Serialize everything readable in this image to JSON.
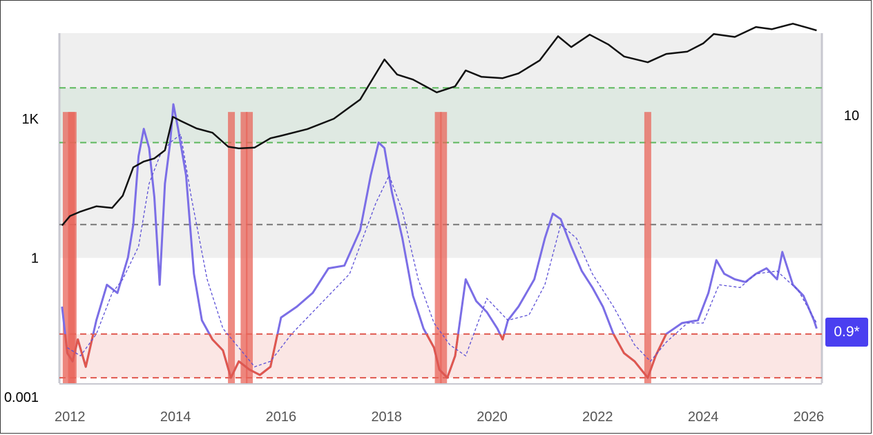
{
  "chart_data": {
    "type": "line",
    "x_ticks": [
      "2012",
      "2014",
      "2016",
      "2018",
      "2020",
      "2022",
      "2024",
      "2026"
    ],
    "y_left_ticks": [
      "1K",
      "1",
      "0.001"
    ],
    "y_right_ticks": [
      "10"
    ],
    "value_badge": "0.9*",
    "colors": {
      "price": "#111111",
      "oscillator": "#7b6ee6",
      "oscillator_low": "#e0574d",
      "signal": "#5b4fd6",
      "upper_band": "#dfe9e2",
      "lower_band": "#fbe6e4",
      "badge": "#4a3ff0"
    },
    "series": [
      {
        "role": "price",
        "x": [
          2011.85,
          2012.0,
          2012.2,
          2012.5,
          2012.8,
          2013.0,
          2013.2,
          2013.4,
          2013.6,
          2013.8,
          2013.95,
          2014.1,
          2014.4,
          2014.7,
          2015.0,
          2015.2,
          2015.5,
          2015.8,
          2016.0,
          2016.5,
          2017.0,
          2017.5,
          2017.96,
          2018.2,
          2018.5,
          2018.95,
          2019.3,
          2019.5,
          2019.8,
          2020.2,
          2020.5,
          2020.9,
          2021.25,
          2021.5,
          2021.85,
          2022.2,
          2022.5,
          2022.95,
          2023.3,
          2023.7,
          2024.0,
          2024.2,
          2024.6,
          2025.0,
          2025.3,
          2025.7,
          2026.0,
          2026.15
        ],
        "y": [
          5,
          8,
          10,
          13,
          12,
          22,
          90,
          120,
          140,
          210,
          1100,
          900,
          620,
          500,
          250,
          230,
          240,
          380,
          430,
          600,
          1000,
          2600,
          19000,
          9000,
          7000,
          3700,
          5000,
          11000,
          8000,
          7500,
          9500,
          18000,
          60000,
          35000,
          65000,
          40000,
          22000,
          16500,
          25000,
          28000,
          42000,
          67000,
          58000,
          95000,
          85000,
          112000,
          90000,
          80000
        ]
      },
      {
        "role": "oscillator",
        "x": [
          2011.85,
          2011.95,
          2012.05,
          2012.15,
          2012.3,
          2012.5,
          2012.7,
          2012.9,
          2013.1,
          2013.2,
          2013.3,
          2013.4,
          2013.5,
          2013.6,
          2013.7,
          2013.8,
          2013.9,
          2013.96,
          2014.05,
          2014.2,
          2014.35,
          2014.5,
          2014.7,
          2014.9,
          2015.05,
          2015.2,
          2015.4,
          2015.6,
          2015.8,
          2016.0,
          2016.3,
          2016.6,
          2016.9,
          2017.2,
          2017.5,
          2017.7,
          2017.85,
          2017.96,
          2018.1,
          2018.3,
          2018.5,
          2018.7,
          2018.9,
          2019.0,
          2019.15,
          2019.3,
          2019.5,
          2019.7,
          2019.9,
          2020.1,
          2020.2,
          2020.3,
          2020.5,
          2020.8,
          2021.0,
          2021.15,
          2021.3,
          2021.5,
          2021.7,
          2021.9,
          2022.1,
          2022.3,
          2022.5,
          2022.7,
          2022.95,
          2023.1,
          2023.3,
          2023.6,
          2023.9,
          2024.1,
          2024.25,
          2024.4,
          2024.6,
          2024.8,
          2025.0,
          2025.2,
          2025.4,
          2025.5,
          2025.7,
          2025.9,
          2026.1,
          2026.15
        ],
        "y": [
          -4.0,
          -5.7,
          -6.0,
          -5.2,
          -6.2,
          -4.5,
          -3.2,
          -3.5,
          -2.2,
          -1.0,
          1.5,
          2.5,
          1.8,
          0.0,
          -3.2,
          0.5,
          2.0,
          3.4,
          2.5,
          0.8,
          -2.8,
          -4.5,
          -5.2,
          -5.6,
          -6.6,
          -6.0,
          -6.3,
          -6.5,
          -6.2,
          -4.4,
          -4.0,
          -3.5,
          -2.6,
          -2.5,
          -1.2,
          0.8,
          2.0,
          1.8,
          0.2,
          -1.5,
          -3.6,
          -4.8,
          -5.5,
          -6.3,
          -6.6,
          -5.8,
          -3.0,
          -3.8,
          -4.2,
          -4.8,
          -5.2,
          -4.5,
          -4.0,
          -3.0,
          -1.5,
          -0.6,
          -0.8,
          -1.8,
          -2.7,
          -3.3,
          -4.0,
          -5.0,
          -5.7,
          -6.0,
          -6.6,
          -5.8,
          -5.0,
          -4.6,
          -4.5,
          -3.5,
          -2.3,
          -2.8,
          -3.0,
          -3.1,
          -2.8,
          -2.6,
          -3.0,
          -2.0,
          -3.2,
          -3.6,
          -4.5,
          -4.8
        ]
      },
      {
        "role": "signal",
        "x": [
          2011.95,
          2012.2,
          2012.5,
          2012.8,
          2013.0,
          2013.3,
          2013.5,
          2013.7,
          2013.9,
          2014.1,
          2014.3,
          2014.6,
          2014.9,
          2015.2,
          2015.5,
          2015.8,
          2016.2,
          2016.8,
          2017.3,
          2017.8,
          2018.05,
          2018.3,
          2018.6,
          2018.9,
          2019.2,
          2019.5,
          2019.9,
          2020.3,
          2020.7,
          2021.0,
          2021.3,
          2021.6,
          2021.9,
          2022.3,
          2022.7,
          2023.0,
          2023.3,
          2023.7,
          2024.0,
          2024.3,
          2024.7,
          2025.0,
          2025.4,
          2025.8,
          2026.15
        ],
        "y": [
          -5.5,
          -5.8,
          -5.0,
          -3.5,
          -3.0,
          -1.8,
          0.5,
          1.5,
          2.0,
          2.3,
          0.0,
          -3.0,
          -4.8,
          -5.5,
          -6.2,
          -6.0,
          -5.0,
          -3.8,
          -2.8,
          -0.2,
          0.8,
          -0.5,
          -3.0,
          -4.6,
          -5.4,
          -5.8,
          -3.7,
          -4.5,
          -4.3,
          -3.2,
          -1.0,
          -1.5,
          -2.8,
          -4.0,
          -5.4,
          -6.0,
          -5.3,
          -4.6,
          -4.6,
          -3.2,
          -3.3,
          -2.8,
          -2.7,
          -3.4,
          -4.6
        ]
      }
    ],
    "red_markers_x": [
      2011.93,
      2012.03,
      2012.06,
      2015.06,
      2015.3,
      2015.4,
      2018.98,
      2019.08,
      2022.95
    ],
    "left_log_axis": {
      "tick_values": [
        1000,
        1,
        0.001
      ],
      "min": 0.002,
      "max": 70000
    },
    "oscillator_scale": {
      "upper_band": [
        2.0,
        4.0
      ],
      "mid_line": -1.0,
      "low_line": -5.0,
      "bottom_line": -6.6,
      "top": 6.0,
      "bottom": -6.8
    },
    "x_range": [
      2011.8,
      2026.25
    ]
  }
}
